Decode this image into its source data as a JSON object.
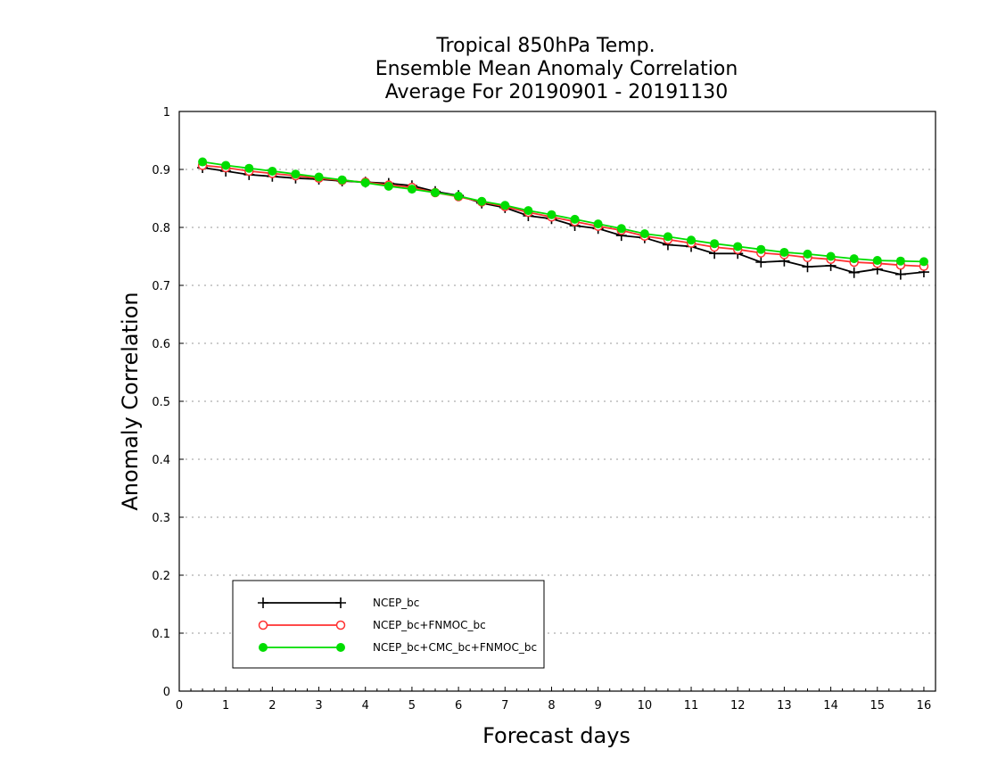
{
  "chart_data": {
    "type": "line",
    "title_lines": [
      "Tropical 850hPa Temp.",
      "Ensemble Mean Anomaly Correlation",
      "Average For 20190901 - 20191130"
    ],
    "xlabel": "Forecast days",
    "ylabel": "Anomaly Correlation",
    "xlim": [
      0,
      16.25
    ],
    "ylim": [
      0,
      1
    ],
    "x_ticks": [
      "0",
      "1",
      "2",
      "3",
      "4",
      "5",
      "6",
      "7",
      "8",
      "9",
      "10",
      "11",
      "12",
      "13",
      "14",
      "15",
      "16"
    ],
    "y_ticks": [
      "0",
      "0.1",
      "0.2",
      "0.3",
      "0.4",
      "0.5",
      "0.6",
      "0.7",
      "0.8",
      "0.9",
      "1"
    ],
    "grid": true,
    "legend_position": "lower-left",
    "x": [
      0.5,
      1,
      1.5,
      2,
      2.5,
      3,
      3.5,
      4,
      4.5,
      5,
      5.5,
      6,
      6.5,
      7,
      7.5,
      8,
      8.5,
      9,
      9.5,
      10,
      10.5,
      11,
      11.5,
      12,
      12.5,
      13,
      13.5,
      14,
      14.5,
      15,
      15.5,
      16
    ],
    "series": [
      {
        "name": "NCEP_bc",
        "color": "#000000",
        "marker": "plus",
        "values": [
          0.903,
          0.897,
          0.891,
          0.888,
          0.885,
          0.883,
          0.88,
          0.878,
          0.876,
          0.872,
          0.862,
          0.855,
          0.842,
          0.834,
          0.82,
          0.815,
          0.803,
          0.798,
          0.786,
          0.782,
          0.77,
          0.767,
          0.755,
          0.755,
          0.74,
          0.742,
          0.732,
          0.734,
          0.722,
          0.728,
          0.719,
          0.723
        ]
      },
      {
        "name": "NCEP_bc+FNMOC_bc",
        "color": "#ff3030",
        "marker": "open-circle",
        "values": [
          0.907,
          0.903,
          0.897,
          0.893,
          0.889,
          0.885,
          0.881,
          0.878,
          0.873,
          0.869,
          0.86,
          0.853,
          0.844,
          0.836,
          0.826,
          0.818,
          0.81,
          0.802,
          0.795,
          0.785,
          0.779,
          0.773,
          0.766,
          0.762,
          0.756,
          0.753,
          0.748,
          0.745,
          0.74,
          0.738,
          0.735,
          0.733
        ]
      },
      {
        "name": "NCEP_bc+CMC_bc+FNMOC_bc",
        "color": "#00dd00",
        "marker": "filled-circle",
        "values": [
          0.913,
          0.907,
          0.902,
          0.897,
          0.892,
          0.887,
          0.882,
          0.877,
          0.871,
          0.866,
          0.86,
          0.854,
          0.845,
          0.838,
          0.829,
          0.822,
          0.814,
          0.806,
          0.798,
          0.789,
          0.784,
          0.778,
          0.772,
          0.767,
          0.762,
          0.757,
          0.754,
          0.75,
          0.746,
          0.743,
          0.742,
          0.741
        ]
      }
    ]
  }
}
